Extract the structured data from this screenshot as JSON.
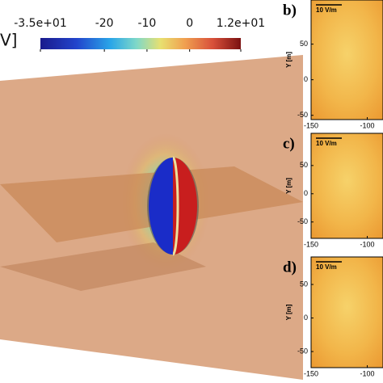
{
  "colorbar": {
    "label": "V]",
    "lim": [
      -35,
      12
    ],
    "ticks": [
      {
        "value": -35,
        "label": "-3.5e+01"
      },
      -20,
      -10,
      0,
      {
        "value": 12,
        "label": "1.2e+01"
      }
    ]
  },
  "panels": [
    {
      "label": "b)",
      "scale_label": "10 V/m",
      "y_axis_label": "Y [m]",
      "xlim": [
        -150,
        -86
      ],
      "ylim": [
        -56,
        112
      ],
      "yticks": [
        50,
        0,
        -50
      ],
      "xticks": [
        -150,
        -100
      ]
    },
    {
      "label": "c)",
      "scale_label": "10 V/m",
      "y_axis_label": "Y [m]",
      "xlim": [
        -150,
        -86
      ],
      "ylim": [
        -79,
        107
      ],
      "yticks": [
        50,
        0,
        -50
      ],
      "xticks": [
        -150,
        -100
      ]
    },
    {
      "label": "d)",
      "scale_label": "10 V/m",
      "y_axis_label": "Y [m]",
      "xlim": [
        -150,
        -86
      ],
      "ylim": [
        -74,
        91
      ],
      "yticks": [
        50,
        0,
        -50
      ],
      "xticks": [
        -150,
        -100
      ]
    }
  ]
}
